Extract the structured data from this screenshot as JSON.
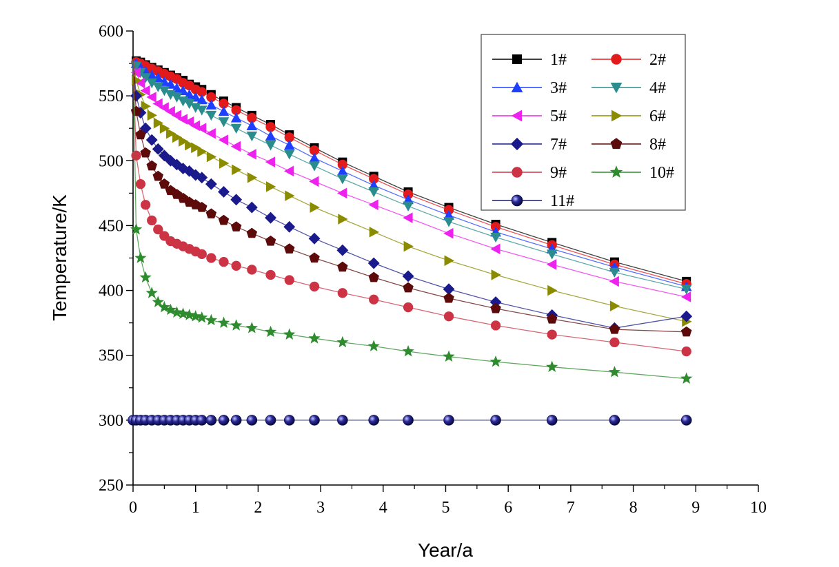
{
  "chart_data": {
    "type": "line",
    "title": "",
    "xlabel": "Year/a",
    "ylabel": "Temperature/K",
    "xlim": [
      0,
      10
    ],
    "ylim": [
      250,
      600
    ],
    "xticks": [
      "0",
      "1",
      "2",
      "3",
      "4",
      "5",
      "6",
      "7",
      "8",
      "9",
      "10"
    ],
    "yticks": [
      "250",
      "300",
      "350",
      "400",
      "450",
      "500",
      "550",
      "600"
    ],
    "grid": false,
    "legend_position": "top-right",
    "x": [
      0.0,
      0.05,
      0.12,
      0.2,
      0.3,
      0.4,
      0.5,
      0.6,
      0.7,
      0.8,
      0.9,
      1.0,
      1.1,
      1.25,
      1.45,
      1.65,
      1.9,
      2.2,
      2.5,
      2.9,
      3.35,
      3.85,
      4.4,
      5.05,
      5.8,
      6.7,
      7.7,
      8.85
    ],
    "series": [
      {
        "name": "1#",
        "color": "#000000",
        "marker": "square",
        "values": [
          578,
          577,
          576,
          574,
          572,
          570,
          568,
          566,
          564,
          562,
          559,
          557,
          555,
          551,
          546,
          541,
          535,
          528,
          520,
          510,
          499,
          488,
          476,
          464,
          451,
          437,
          422,
          407
        ]
      },
      {
        "name": "2#",
        "color": "#e31a1c",
        "marker": "circle",
        "values": [
          578,
          576,
          575,
          573,
          571,
          569,
          567,
          565,
          563,
          560,
          558,
          555,
          553,
          549,
          544,
          539,
          533,
          526,
          518,
          508,
          497,
          486,
          474,
          462,
          449,
          435,
          420,
          405
        ]
      },
      {
        "name": "3#",
        "color": "#1f3fff",
        "marker": "triangle-up",
        "values": [
          578,
          575,
          572,
          569,
          566,
          564,
          561,
          559,
          556,
          554,
          551,
          549,
          547,
          543,
          538,
          533,
          527,
          519,
          512,
          502,
          492,
          481,
          470,
          458,
          445,
          432,
          418,
          403
        ]
      },
      {
        "name": "4#",
        "color": "#2a8c8c",
        "marker": "triangle-down",
        "values": [
          578,
          573,
          568,
          564,
          560,
          557,
          554,
          551,
          549,
          546,
          544,
          541,
          539,
          535,
          530,
          525,
          519,
          512,
          505,
          496,
          486,
          476,
          465,
          453,
          441,
          428,
          414,
          401
        ]
      },
      {
        "name": "5#",
        "color": "#ee22ee",
        "marker": "triangle-left",
        "values": [
          578,
          568,
          560,
          554,
          549,
          544,
          541,
          538,
          535,
          532,
          530,
          527,
          525,
          521,
          516,
          511,
          505,
          499,
          492,
          484,
          475,
          466,
          456,
          444,
          432,
          420,
          407,
          395
        ]
      },
      {
        "name": "6#",
        "color": "#8b8b00",
        "marker": "triangle-right",
        "values": [
          578,
          562,
          551,
          542,
          535,
          529,
          525,
          521,
          518,
          515,
          512,
          510,
          507,
          503,
          498,
          493,
          487,
          480,
          473,
          464,
          455,
          445,
          434,
          423,
          412,
          400,
          388,
          376
        ]
      },
      {
        "name": "7#",
        "color": "#1a1a8c",
        "marker": "diamond",
        "values": [
          578,
          550,
          537,
          525,
          516,
          509,
          504,
          500,
          497,
          494,
          492,
          489,
          487,
          482,
          476,
          470,
          464,
          456,
          449,
          440,
          431,
          421,
          411,
          401,
          391,
          381,
          371,
          380
        ]
      },
      {
        "name": "8#",
        "color": "#5c0a0a",
        "marker": "pentagon",
        "values": [
          578,
          538,
          520,
          506,
          496,
          488,
          482,
          477,
          474,
          471,
          468,
          466,
          464,
          459,
          454,
          449,
          444,
          438,
          432,
          425,
          418,
          410,
          402,
          394,
          386,
          378,
          370,
          368
        ]
      },
      {
        "name": "9#",
        "color": "#cc3344",
        "marker": "circle",
        "values": [
          578,
          504,
          482,
          466,
          454,
          447,
          442,
          438,
          436,
          434,
          432,
          430,
          428,
          425,
          422,
          419,
          416,
          412,
          408,
          403,
          398,
          393,
          387,
          380,
          373,
          366,
          360,
          353
        ]
      },
      {
        "name": "10#",
        "color": "#2e8b2e",
        "marker": "star",
        "values": [
          578,
          447,
          425,
          410,
          398,
          391,
          387,
          385,
          383,
          382,
          381,
          380,
          379,
          377,
          375,
          373,
          371,
          368,
          366,
          363,
          360,
          357,
          353,
          349,
          345,
          341,
          337,
          332
        ]
      },
      {
        "name": "11#",
        "color": "#1a1a6e",
        "marker": "sphere",
        "values": [
          300,
          300,
          300,
          300,
          300,
          300,
          300,
          300,
          300,
          300,
          300,
          300,
          300,
          300,
          300,
          300,
          300,
          300,
          300,
          300,
          300,
          300,
          300,
          300,
          300,
          300,
          300,
          300
        ]
      }
    ]
  }
}
